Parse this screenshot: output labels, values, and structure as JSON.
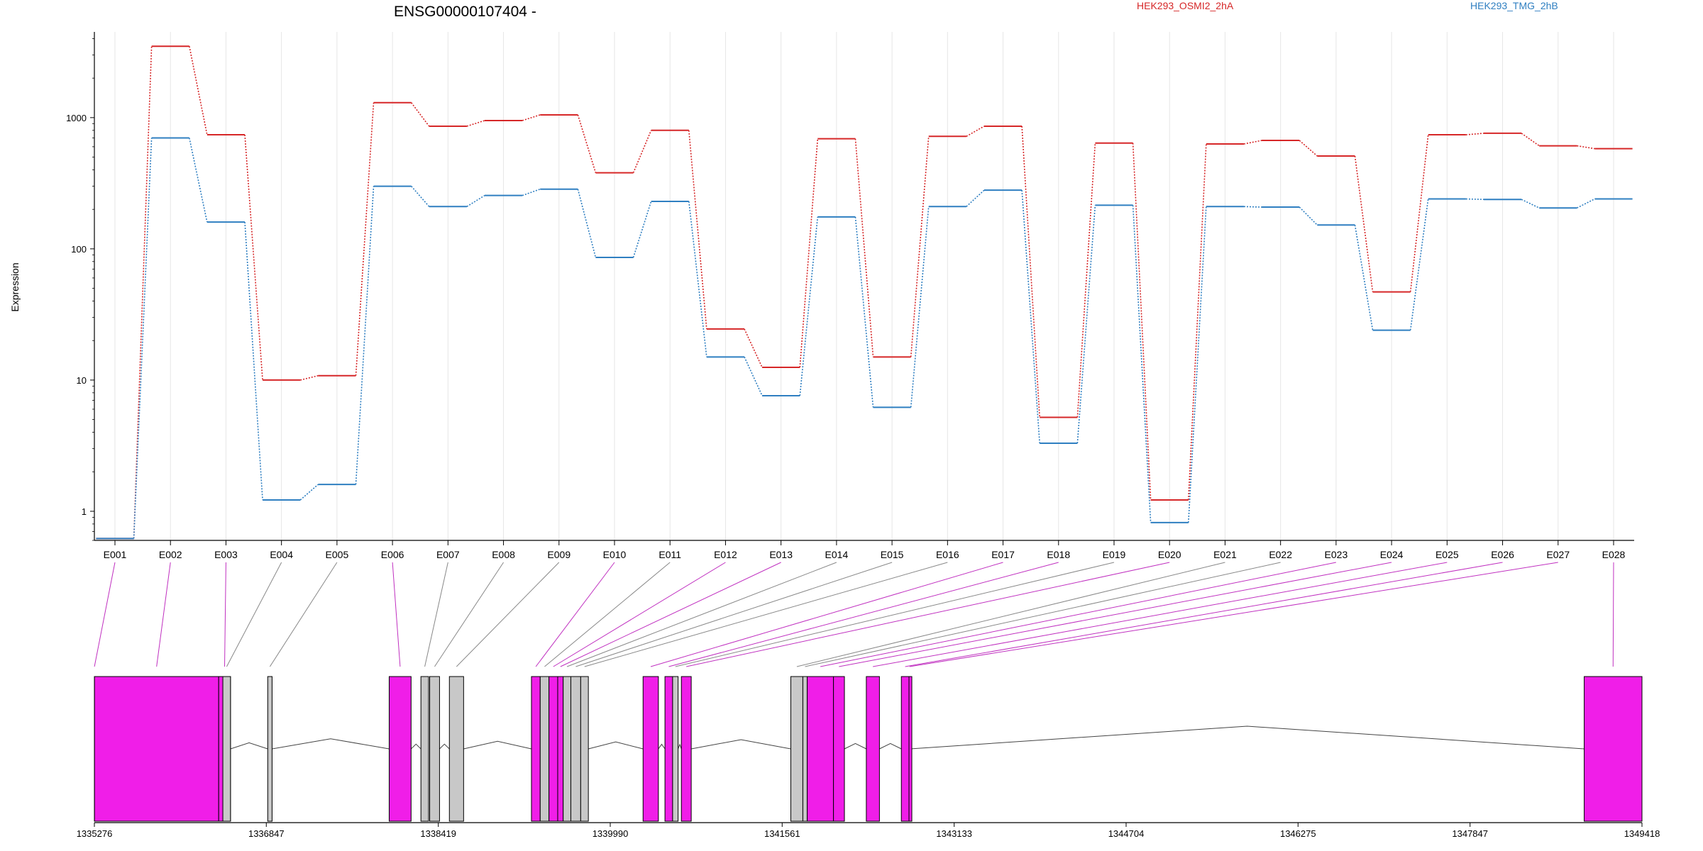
{
  "chart_data": {
    "type": "line",
    "title": "ENSG00000107404 -",
    "xlabel": "",
    "ylabel": "Expression",
    "y_scale": "log",
    "ylim": [
      0.6,
      4500
    ],
    "yticks": [
      1,
      10,
      100,
      1000
    ],
    "ytick_labels": [
      "1",
      "10",
      "100",
      "1000"
    ],
    "grid": "vertical",
    "legend_placement": "top",
    "categories": [
      "E001",
      "E002",
      "E003",
      "E004",
      "E005",
      "E006",
      "E007",
      "E008",
      "E009",
      "E010",
      "E011",
      "E012",
      "E013",
      "E014",
      "E015",
      "E016",
      "E017",
      "E018",
      "E019",
      "E020",
      "E021",
      "E022",
      "E023",
      "E024",
      "E025",
      "E026",
      "E027",
      "E028"
    ],
    "series": [
      {
        "name": "HEK293_OSMI2_2hA",
        "color": "#d62728",
        "values": [
          0.62,
          3500,
          740,
          10,
          10.8,
          1300,
          860,
          950,
          1050,
          380,
          800,
          24.5,
          12.5,
          690,
          15,
          720,
          860,
          5.2,
          640,
          1.22,
          630,
          670,
          510,
          47,
          740,
          760,
          610,
          580
        ]
      },
      {
        "name": "HEK293_TMG_2hB",
        "color": "#2f7fc1",
        "values": [
          0.62,
          700,
          160,
          1.22,
          1.6,
          300,
          210,
          255,
          285,
          86,
          230,
          15,
          7.6,
          175,
          6.2,
          210,
          280,
          3.3,
          215,
          0.82,
          210,
          208,
          152,
          24,
          240,
          238,
          205,
          240
        ]
      }
    ],
    "gene_model": {
      "genomic_ticks": [
        "1335276",
        "1336847",
        "1338419",
        "1339990",
        "1341561",
        "1343133",
        "1344704",
        "1346275",
        "1347847",
        "1349418"
      ],
      "exons": [
        {
          "id": "E001",
          "start": 1335276,
          "end": 1335277,
          "highlighted": true
        },
        {
          "id": "E002",
          "start": 1335277,
          "end": 1336412,
          "highlighted": true
        },
        {
          "id": "E003",
          "start": 1336412,
          "end": 1336520,
          "highlighted": true
        },
        {
          "id": "E004",
          "start": 1336450,
          "end": 1336520,
          "highlighted": false
        },
        {
          "id": "E005",
          "start": 1336860,
          "end": 1336900,
          "highlighted": false
        },
        {
          "id": "E006",
          "start": 1337970,
          "end": 1338170,
          "highlighted": true
        },
        {
          "id": "E007",
          "start": 1338260,
          "end": 1338330,
          "highlighted": false
        },
        {
          "id": "E008",
          "start": 1338340,
          "end": 1338430,
          "highlighted": false
        },
        {
          "id": "E009",
          "start": 1338520,
          "end": 1338650,
          "highlighted": false
        },
        {
          "id": "E010",
          "start": 1339270,
          "end": 1339350,
          "highlighted": true
        },
        {
          "id": "E011",
          "start": 1339350,
          "end": 1339430,
          "highlighted": false
        },
        {
          "id": "E012",
          "start": 1339430,
          "end": 1339510,
          "highlighted": true
        },
        {
          "id": "E013",
          "start": 1339510,
          "end": 1339560,
          "highlighted": true
        },
        {
          "id": "E014",
          "start": 1339560,
          "end": 1339630,
          "highlighted": false
        },
        {
          "id": "E015",
          "start": 1339630,
          "end": 1339720,
          "highlighted": false
        },
        {
          "id": "E016",
          "start": 1339720,
          "end": 1339790,
          "highlighted": false
        },
        {
          "id": "E017",
          "start": 1340290,
          "end": 1340430,
          "highlighted": true
        },
        {
          "id": "E018",
          "start": 1340490,
          "end": 1340560,
          "highlighted": true
        },
        {
          "id": "E019",
          "start": 1340560,
          "end": 1340610,
          "highlighted": false
        },
        {
          "id": "E020",
          "start": 1340640,
          "end": 1340730,
          "highlighted": true
        },
        {
          "id": "E021",
          "start": 1341640,
          "end": 1341750,
          "highlighted": false
        },
        {
          "id": "E022",
          "start": 1341750,
          "end": 1341790,
          "highlighted": false
        },
        {
          "id": "E023",
          "start": 1341790,
          "end": 1342030,
          "highlighted": true
        },
        {
          "id": "E024",
          "start": 1342030,
          "end": 1342130,
          "highlighted": true
        },
        {
          "id": "E025",
          "start": 1342330,
          "end": 1342450,
          "highlighted": true
        },
        {
          "id": "E026",
          "start": 1342650,
          "end": 1342720,
          "highlighted": true
        },
        {
          "id": "E027",
          "start": 1342720,
          "end": 1342730,
          "highlighted": true
        },
        {
          "id": "E028",
          "start": 1348890,
          "end": 1349418,
          "highlighted": true
        }
      ]
    }
  }
}
